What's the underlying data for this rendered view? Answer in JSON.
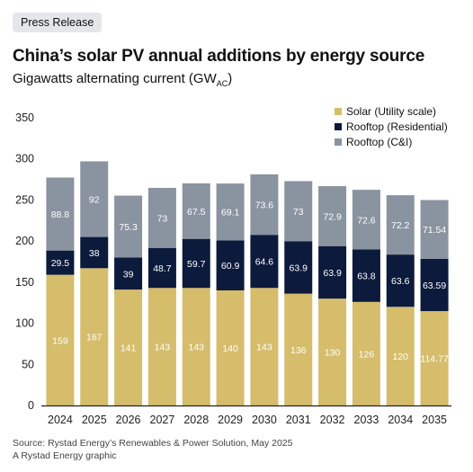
{
  "badge": "Press Release",
  "title": "China’s solar PV annual additions by energy source",
  "subtitle_main": "Gigawatts alternating current (GW",
  "subtitle_sub": "AC",
  "subtitle_end": ")",
  "source": "Source: Rystad Energy’s Renewables & Power Solution, May 2025",
  "credit": "A Rystad Energy graphic",
  "chart_data": {
    "type": "bar",
    "stacked": true,
    "categories": [
      "2024",
      "2025",
      "2026",
      "2027",
      "2028",
      "2029",
      "2030",
      "2031",
      "2032",
      "2033",
      "2034",
      "2035"
    ],
    "series": [
      {
        "name": "Solar (Utility scale)",
        "color": "#d5bd6c",
        "label_color": "#ffffff",
        "values": [
          159,
          167,
          141,
          143,
          143,
          140,
          143,
          136,
          130,
          126,
          120,
          114.77
        ],
        "labels": [
          "159",
          "167",
          "141",
          "143",
          "143",
          "140",
          "143",
          "136",
          "130",
          "126",
          "120",
          "114.77"
        ]
      },
      {
        "name": "Rooftop (Residential)",
        "color": "#0c1a3c",
        "label_color": "#ffffff",
        "values": [
          29.5,
          38,
          39,
          48.7,
          59.7,
          60.9,
          64.6,
          63.9,
          63.9,
          63.8,
          63.6,
          63.59
        ],
        "labels": [
          "29.5",
          "38",
          "39",
          "48.7",
          "59.7",
          "60.9",
          "64.6",
          "63.9",
          "63.9",
          "63.8",
          "63.6",
          "63.59"
        ]
      },
      {
        "name": "Rooftop (C&I)",
        "color": "#8a93a0",
        "label_color": "#ffffff",
        "values": [
          88.8,
          92,
          75.3,
          73,
          67.5,
          69.1,
          73.6,
          73,
          72.9,
          72.6,
          72.2,
          71.54
        ],
        "labels": [
          "88.8",
          "92",
          "75.3",
          "73",
          "67.5",
          "69.1",
          "73.6",
          "73",
          "72.9",
          "72.6",
          "72.2",
          "71.54"
        ]
      }
    ],
    "yticks": [
      0,
      50,
      100,
      150,
      200,
      250,
      300,
      350
    ],
    "ylim": [
      0,
      350
    ],
    "legend_position": "top-right",
    "grid": false
  }
}
